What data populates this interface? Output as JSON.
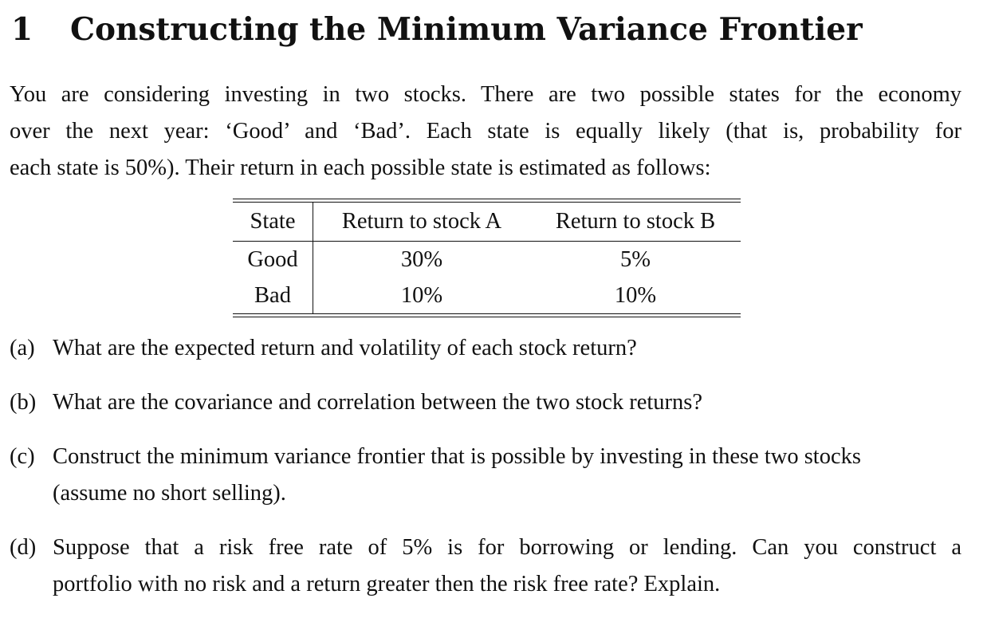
{
  "section": {
    "number": "1",
    "title": "Constructing the Minimum Variance Frontier"
  },
  "intro": {
    "lines": [
      "You are considering investing in two stocks. There are two possible states for the economy",
      "over the next year: ‘Good’ and ‘Bad’. Each state is equally likely (that is, probability for",
      "each state is 50%). Their return in each possible state is estimated as follows:"
    ]
  },
  "table": {
    "headers": [
      "State",
      "Return to stock A",
      "Return to stock B"
    ],
    "rows": [
      [
        "Good",
        "30%",
        "5%"
      ],
      [
        "Bad",
        "10%",
        "10%"
      ]
    ]
  },
  "questions": [
    {
      "label": "(a)",
      "lines": [
        "What are the expected return and volatility of each stock return?"
      ]
    },
    {
      "label": "(b)",
      "lines": [
        "What are the covariance and correlation between the two stock returns?"
      ]
    },
    {
      "label": "(c)",
      "lines": [
        "Construct the minimum variance frontier that is possible by investing in these two stocks",
        "(assume no short selling)."
      ]
    },
    {
      "label": "(d)",
      "lines": [
        "Suppose that a risk free rate of 5% is for borrowing or lending. Can you construct a",
        "portfolio with no risk and a return greater then the risk free rate? Explain."
      ]
    }
  ]
}
